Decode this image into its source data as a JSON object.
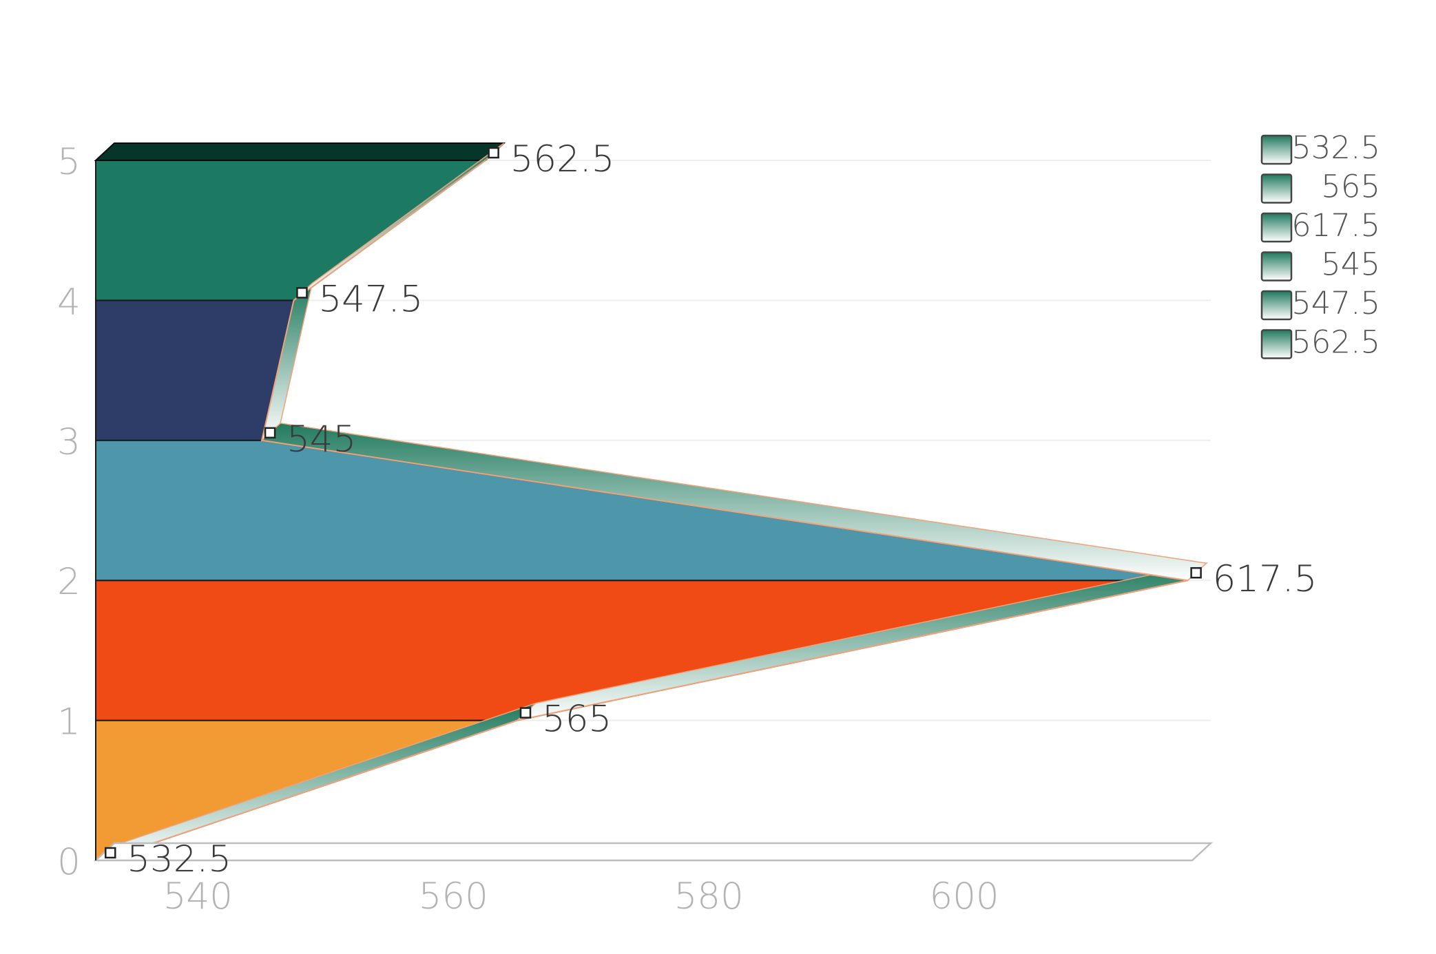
{
  "chart_data": {
    "type": "area",
    "orientation": "horizontal",
    "title": "",
    "xlabel": "",
    "ylabel": "",
    "x_ticks": [
      540,
      560,
      580,
      600
    ],
    "y_ticks": [
      0,
      1,
      2,
      3,
      4,
      5
    ],
    "xlim": [
      532,
      619.3
    ],
    "ylim": [
      0,
      5
    ],
    "grid": true,
    "legend_position": "top-right",
    "categories": [
      0,
      1,
      2,
      3,
      4,
      5
    ],
    "values": [
      532.5,
      565,
      617.5,
      545,
      547.5,
      562.5
    ],
    "labels": [
      "532.5",
      "565",
      "617.5",
      "545",
      "547.5",
      "562.5"
    ],
    "legend": [
      "532.5",
      "565",
      "617.5",
      "545",
      "547.5",
      "562.5"
    ],
    "colors": {
      "band_0_1": "#f29b34",
      "band_1_2": "#f04b14",
      "band_2_3": "#4e97aa",
      "band_3_4": "#2d3d67",
      "band_4_5": "#1d7a62",
      "band_top": "#06362a",
      "ribbon_dark": "#217a5e",
      "ribbon_light": "#ffffff",
      "outline": "#f0a27a",
      "grid": "#eeeeee",
      "axis": "#bdbdbd"
    }
  }
}
